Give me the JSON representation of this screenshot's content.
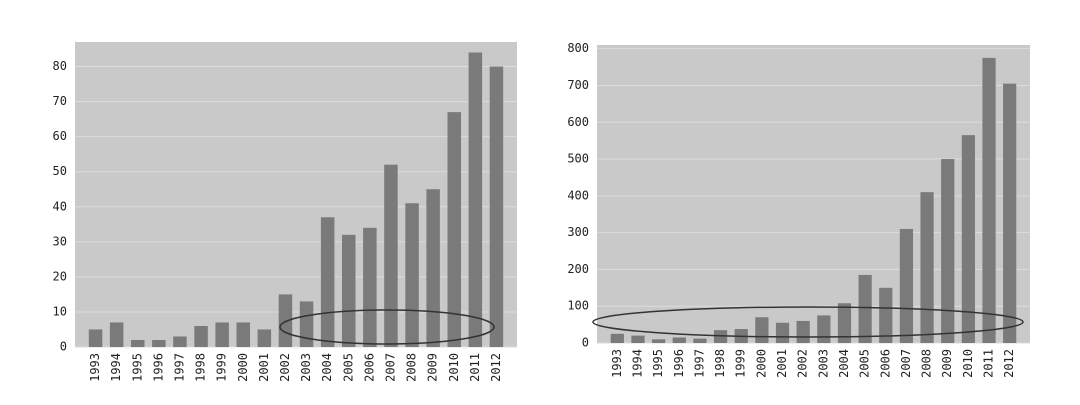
{
  "chart_data": [
    {
      "type": "bar",
      "categories": [
        "1993",
        "1994",
        "1995",
        "1996",
        "1997",
        "1998",
        "1999",
        "2000",
        "2001",
        "2002",
        "2003",
        "2004",
        "2005",
        "2006",
        "2007",
        "2008",
        "2009",
        "2010",
        "2011",
        "2012"
      ],
      "values": [
        5,
        7,
        2,
        2,
        3,
        6,
        7,
        7,
        5,
        15,
        13,
        37,
        32,
        34,
        52,
        41,
        45,
        67,
        84,
        80
      ],
      "color": "#7a7a7a",
      "ylim": [
        0,
        87
      ],
      "yticks": [
        0,
        10,
        20,
        30,
        40,
        50,
        60,
        70,
        80
      ],
      "grid": true
    },
    {
      "type": "bar",
      "categories": [
        "1993",
        "1994",
        "1995",
        "1996",
        "1997",
        "1998",
        "1999",
        "2000",
        "2001",
        "2002",
        "2003",
        "2004",
        "2005",
        "2006",
        "2007",
        "2008",
        "2009",
        "2010",
        "2011",
        "2012"
      ],
      "values": [
        25,
        20,
        10,
        15,
        12,
        35,
        38,
        70,
        55,
        60,
        75,
        108,
        185,
        150,
        310,
        410,
        500,
        565,
        775,
        705
      ],
      "color": "#7a7a7a",
      "ylim": [
        0,
        810
      ],
      "yticks": [
        0,
        100,
        200,
        300,
        400,
        500,
        600,
        700,
        800
      ],
      "grid": true
    }
  ]
}
